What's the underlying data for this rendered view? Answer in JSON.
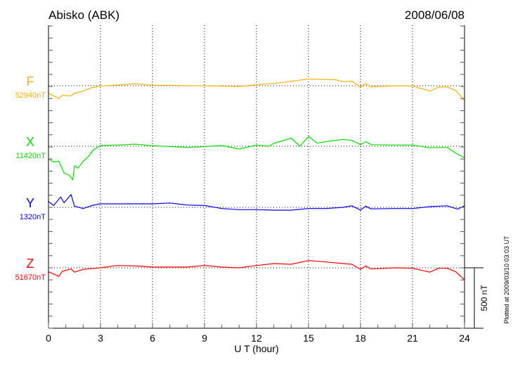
{
  "chart_data": {
    "type": "line",
    "title": "Abisko (ABK)",
    "date": "2008/06/08",
    "xlabel": "U T (hour)",
    "xlim": [
      0,
      24
    ],
    "xticks": [
      "0",
      "3",
      "6",
      "9",
      "12",
      "15",
      "18",
      "21",
      "24"
    ],
    "scale_label": "500 nT",
    "scale_nT": 500,
    "tick_interval_nT": 100,
    "plotted_note": "Plotted at 2009/03/10 03:03 UT",
    "grid": true,
    "series": [
      {
        "name": "F",
        "baseline_label": "52940nT",
        "color": "#ffb000",
        "x": [
          0,
          0.6,
          0.8,
          1.3,
          1.5,
          2,
          2.5,
          3,
          4,
          5,
          6,
          7,
          8,
          9,
          11,
          12,
          13,
          14,
          15,
          16,
          16.5,
          17,
          17.5,
          18,
          18.3,
          18.6,
          19,
          20,
          21,
          22,
          22.5,
          23,
          23.5,
          24
        ],
        "y": [
          -63,
          -106,
          -79,
          -83,
          -63,
          -44,
          -15,
          -2,
          6,
          17,
          4,
          4,
          0,
          0,
          -6,
          8,
          19,
          36,
          56,
          52,
          52,
          33,
          38,
          -10,
          17,
          -10,
          -6,
          0,
          -2,
          -44,
          -12,
          -10,
          -40,
          -121
        ]
      },
      {
        "name": "X",
        "baseline_label": "11420nT",
        "color": "#00e000",
        "x": [
          0,
          0.3,
          0.6,
          0.9,
          1.2,
          1.4,
          1.5,
          1.7,
          2,
          2.3,
          2.6,
          3,
          4,
          5,
          6,
          8,
          9,
          10,
          11,
          12,
          12.7,
          13,
          14,
          14.5,
          15,
          15.5,
          16,
          17,
          17.5,
          18,
          18.3,
          18.6,
          20,
          21,
          22,
          23,
          23.5,
          24
        ],
        "y": [
          -106,
          -130,
          -125,
          -221,
          -240,
          -279,
          -163,
          -182,
          -125,
          -86,
          -29,
          6,
          10,
          17,
          4,
          -10,
          -4,
          6,
          -23,
          10,
          0,
          23,
          67,
          0,
          81,
          25,
          38,
          56,
          48,
          13,
          38,
          13,
          10,
          10,
          -13,
          -10,
          -58,
          -96
        ]
      },
      {
        "name": "Y",
        "baseline_label": "1320nT",
        "color": "#0000ff",
        "x": [
          0,
          0.3,
          0.7,
          0.9,
          1.3,
          1.5,
          2,
          2.5,
          3,
          4,
          5,
          6,
          7,
          8,
          9,
          10,
          11,
          12,
          13,
          14,
          15,
          16,
          17,
          17.5,
          18,
          18.3,
          18.6,
          20,
          21,
          22,
          23,
          23.6,
          24
        ],
        "y": [
          48,
          15,
          86,
          38,
          106,
          10,
          -10,
          15,
          29,
          29,
          29,
          29,
          36,
          19,
          15,
          -10,
          -19,
          -19,
          -23,
          -23,
          -10,
          -10,
          0,
          13,
          -23,
          10,
          -13,
          -10,
          -10,
          6,
          13,
          -15,
          13
        ]
      },
      {
        "name": "Z",
        "baseline_label": "51670nT",
        "color": "#ff0000",
        "x": [
          0,
          0.6,
          0.8,
          1.3,
          1.5,
          2,
          3,
          4,
          5,
          6,
          8,
          9,
          10,
          11,
          12,
          13,
          14,
          15,
          16,
          17,
          17.5,
          18,
          18.3,
          18.6,
          20,
          21,
          22,
          22.5,
          23,
          23.5,
          24
        ],
        "y": [
          -33,
          -71,
          -29,
          -10,
          -36,
          -13,
          0,
          19,
          15,
          6,
          6,
          19,
          6,
          0,
          19,
          35,
          29,
          60,
          48,
          35,
          29,
          -13,
          15,
          -10,
          0,
          -4,
          -36,
          -4,
          -4,
          -33,
          -100
        ]
      }
    ]
  }
}
